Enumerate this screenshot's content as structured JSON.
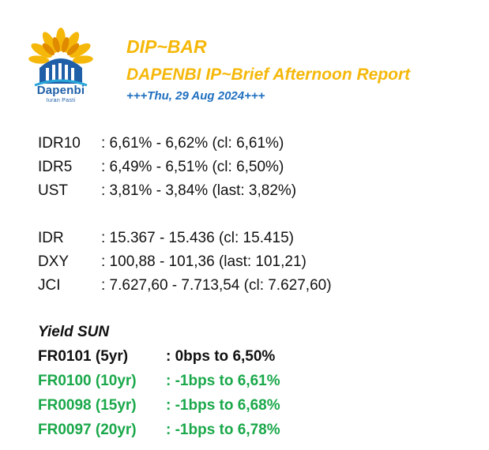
{
  "header": {
    "logo_name": "Dapenbi",
    "logo_tagline": "Iuran Pasti",
    "title": "DIP~BAR",
    "subtitle": "DAPENBI IP~Brief Afternoon Report",
    "date": "+++Thu, 29 Aug 2024+++"
  },
  "colors": {
    "title": "#f5b80a",
    "date": "#1f6fbf",
    "logo_blue": "#1e5fa8",
    "green": "#1aa84a"
  },
  "rates": [
    {
      "label": "IDR10",
      "value": ": 6,61% - 6,62% (cl: 6,61%)"
    },
    {
      "label": "IDR5",
      "value": ": 6,49% - 6,51% (cl: 6,50%)"
    },
    {
      "label": "UST",
      "value": ": 3,81% - 3,84% (last: 3,82%)"
    }
  ],
  "markets": [
    {
      "label": "IDR",
      "value": ": 15.367 - 15.436 (cl: 15.415)"
    },
    {
      "label": "DXY",
      "value": ": 100,88 - 101,36 (last: 101,21)"
    },
    {
      "label": "JCI",
      "value": ": 7.627,60 - 7.713,54 (cl: 7.627,60)"
    }
  ],
  "yield_sun": {
    "title": "Yield SUN",
    "bonds": [
      {
        "label": "FR0101 (5yr)",
        "value": ": 0bps to 6,50%"
      },
      {
        "label": "FR0100 (10yr)",
        "value": ": -1bps to 6,61%"
      },
      {
        "label": "FR0098 (15yr)",
        "value": ": -1bps to 6,68%"
      },
      {
        "label": "FR0097 (20yr)",
        "value": ": -1bps to 6,78%"
      }
    ]
  }
}
